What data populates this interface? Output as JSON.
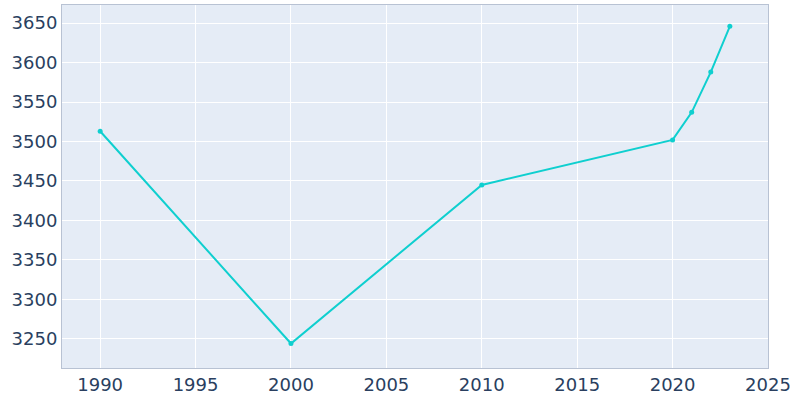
{
  "chart_data": {
    "type": "line",
    "x": [
      1990,
      2000,
      2010,
      2020,
      2021,
      2022,
      2023
    ],
    "values": [
      3513,
      3244,
      3445,
      3502,
      3537,
      3588,
      3646
    ],
    "color": "#0fcfcf",
    "marker": "circle",
    "line_style": "solid",
    "xlim": [
      1988,
      2025
    ],
    "xticks": [
      1990,
      1995,
      2000,
      2005,
      2010,
      2015,
      2020,
      2025
    ],
    "ylim": [
      3213,
      3673
    ],
    "yticks": [
      3250,
      3300,
      3350,
      3400,
      3450,
      3500,
      3550,
      3600,
      3650
    ],
    "grid": true
  }
}
